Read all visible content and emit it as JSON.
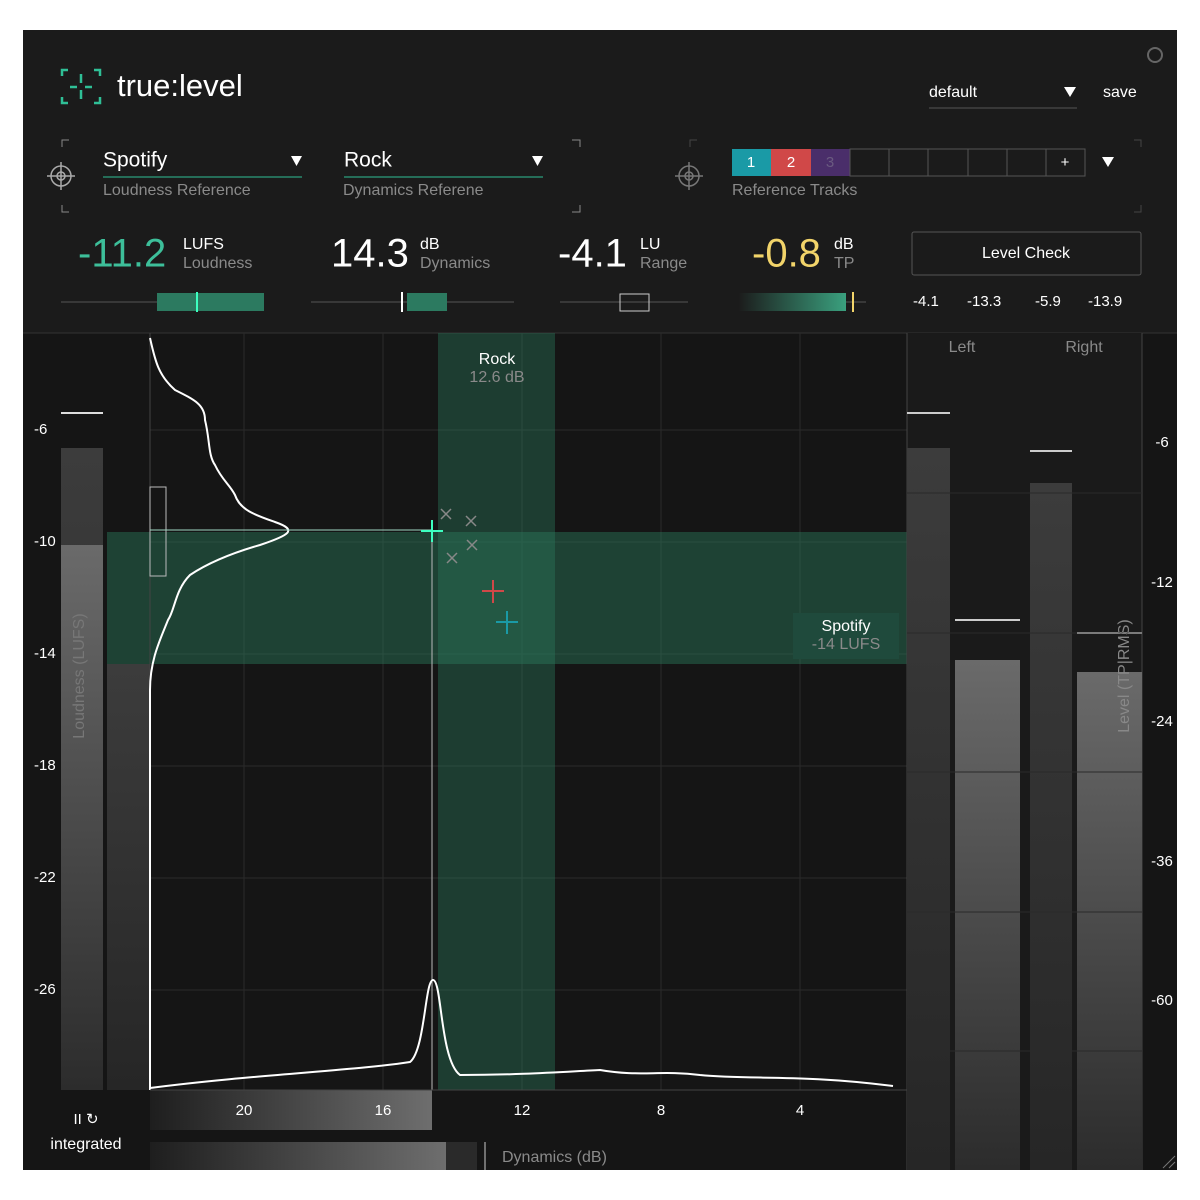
{
  "header": {
    "logo": "true:level",
    "preset": "default",
    "save": "save"
  },
  "loudness_reference": {
    "value": "Spotify",
    "label": "Loudness Reference"
  },
  "dynamics_reference": {
    "value": "Rock",
    "label": "Dynamics Referene"
  },
  "reference_tracks": {
    "slots": [
      "1",
      "2",
      "3",
      "+"
    ],
    "label": "Reference Tracks"
  },
  "meters": [
    {
      "value": "-11.2",
      "unit": "LUFS",
      "label": "Loudness"
    },
    {
      "value": "14.3",
      "unit": "dB",
      "label": "Dynamics"
    },
    {
      "value": "-4.1",
      "unit": "LU",
      "label": "Range"
    },
    {
      "value": "-0.8",
      "unit": "dB",
      "label": "TP"
    }
  ],
  "level_check": {
    "button": "Level Check",
    "values": [
      "-4.1",
      "-13.3",
      "-5.9",
      "-13.9"
    ]
  },
  "plot": {
    "loudness_axis_label": "Loudness (LUFS)",
    "loudness_ticks": [
      "-6",
      "-10",
      "-14",
      "-18",
      "-22",
      "-26"
    ],
    "dynamics_ticks": [
      "20",
      "16",
      "12",
      "8",
      "4"
    ],
    "dynamics_axis_label": "Dynamics (dB)",
    "rock_label": "Rock",
    "rock_value": "12.6 dB",
    "spotify_label": "Spotify",
    "spotify_value": "-14 LUFS"
  },
  "level_meter": {
    "channels": [
      "Left",
      "Right"
    ],
    "axis_label": "Level (TP|RMS)",
    "ticks": [
      "-6",
      "-12",
      "-24",
      "-36",
      "-60"
    ]
  },
  "transport": {
    "mode": "integrated"
  }
}
